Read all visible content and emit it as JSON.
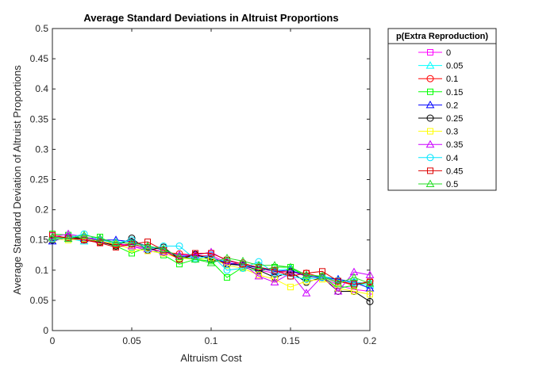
{
  "chart_data": {
    "type": "line",
    "title": "Average Standard Deviations in Altruist Proportions",
    "xlabel": "Altruism Cost",
    "ylabel": "Average Standard Deviation of Altruist Proportions",
    "xlim": [
      0,
      0.2
    ],
    "ylim": [
      0,
      0.5
    ],
    "x_ticks": [
      0,
      0.05,
      0.1,
      0.15,
      0.2
    ],
    "x_tick_labels": [
      "0",
      "0.05",
      "0.1",
      "0.15",
      "0.2"
    ],
    "y_ticks": [
      0,
      0.05,
      0.1,
      0.15,
      0.2,
      0.25,
      0.3,
      0.35,
      0.4,
      0.45,
      0.5
    ],
    "y_tick_labels": [
      "0",
      "0.05",
      "0.1",
      "0.15",
      "0.2",
      "0.25",
      "0.3",
      "0.35",
      "0.4",
      "0.45",
      "0.5"
    ],
    "grid": false,
    "legend_title": "p(Extra Reproduction)",
    "legend_position": "outside-right-top",
    "x": [
      0,
      0.01,
      0.02,
      0.03,
      0.04,
      0.05,
      0.06,
      0.07,
      0.08,
      0.09,
      0.1,
      0.11,
      0.12,
      0.13,
      0.14,
      0.15,
      0.16,
      0.17,
      0.18,
      0.19,
      0.2
    ],
    "series": [
      {
        "name": "0",
        "color": "#ff00ff",
        "marker": "square",
        "values": [
          0.157,
          0.153,
          0.15,
          0.148,
          0.142,
          0.14,
          0.132,
          0.128,
          0.12,
          0.122,
          0.125,
          0.112,
          0.108,
          0.1,
          0.095,
          0.098,
          0.09,
          0.088,
          0.075,
          0.068,
          0.065
        ]
      },
      {
        "name": "0.05",
        "color": "#00ffff",
        "marker": "triangle",
        "values": [
          0.155,
          0.152,
          0.148,
          0.15,
          0.146,
          0.145,
          0.135,
          0.13,
          0.125,
          0.12,
          0.118,
          0.115,
          0.11,
          0.105,
          0.1,
          0.102,
          0.092,
          0.09,
          0.085,
          0.078,
          0.075
        ]
      },
      {
        "name": "0.1",
        "color": "#ff0000",
        "marker": "circle",
        "values": [
          0.153,
          0.155,
          0.15,
          0.146,
          0.142,
          0.143,
          0.137,
          0.13,
          0.127,
          0.125,
          0.122,
          0.11,
          0.112,
          0.103,
          0.098,
          0.097,
          0.095,
          0.088,
          0.082,
          0.075,
          0.082
        ]
      },
      {
        "name": "0.15",
        "color": "#00ff00",
        "marker": "square",
        "values": [
          0.16,
          0.158,
          0.152,
          0.155,
          0.14,
          0.128,
          0.138,
          0.125,
          0.11,
          0.118,
          0.115,
          0.088,
          0.105,
          0.098,
          0.105,
          0.105,
          0.088,
          0.09,
          0.07,
          0.075,
          0.08
        ]
      },
      {
        "name": "0.2",
        "color": "#0000ff",
        "marker": "triangle",
        "values": [
          0.148,
          0.155,
          0.152,
          0.15,
          0.15,
          0.147,
          0.14,
          0.133,
          0.122,
          0.125,
          0.12,
          0.112,
          0.108,
          0.104,
          0.098,
          0.1,
          0.09,
          0.088,
          0.085,
          0.08,
          0.07
        ]
      },
      {
        "name": "0.25",
        "color": "#000000",
        "marker": "circle",
        "values": [
          0.15,
          0.155,
          0.152,
          0.147,
          0.14,
          0.153,
          0.133,
          0.138,
          0.118,
          0.126,
          0.118,
          0.11,
          0.108,
          0.1,
          0.088,
          0.097,
          0.08,
          0.088,
          0.065,
          0.065,
          0.048
        ]
      },
      {
        "name": "0.3",
        "color": "#ffff00",
        "marker": "square",
        "values": [
          0.152,
          0.15,
          0.152,
          0.148,
          0.143,
          0.135,
          0.132,
          0.128,
          0.12,
          0.118,
          0.12,
          0.108,
          0.103,
          0.092,
          0.085,
          0.072,
          0.082,
          0.085,
          0.07,
          0.065,
          0.06
        ]
      },
      {
        "name": "0.35",
        "color": "#cc00ff",
        "marker": "triangle",
        "values": [
          0.155,
          0.16,
          0.155,
          0.15,
          0.145,
          0.14,
          0.135,
          0.13,
          0.125,
          0.125,
          0.13,
          0.115,
          0.11,
          0.09,
          0.08,
          0.095,
          0.062,
          0.09,
          0.065,
          0.097,
          0.092
        ]
      },
      {
        "name": "0.4",
        "color": "#00e5ff",
        "marker": "circle",
        "values": [
          0.152,
          0.153,
          0.16,
          0.15,
          0.145,
          0.15,
          0.135,
          0.14,
          0.14,
          0.118,
          0.125,
          0.1,
          0.103,
          0.114,
          0.095,
          0.09,
          0.085,
          0.088,
          0.083,
          0.08,
          0.078
        ]
      },
      {
        "name": "0.45",
        "color": "#dd0000",
        "marker": "square",
        "values": [
          0.158,
          0.153,
          0.15,
          0.145,
          0.138,
          0.143,
          0.147,
          0.133,
          0.118,
          0.128,
          0.128,
          0.117,
          0.11,
          0.105,
          0.1,
          0.09,
          0.095,
          0.098,
          0.082,
          0.077,
          0.08
        ]
      },
      {
        "name": "0.5",
        "color": "#22dd22",
        "marker": "triangle",
        "values": [
          0.155,
          0.152,
          0.158,
          0.153,
          0.145,
          0.145,
          0.14,
          0.135,
          0.122,
          0.118,
          0.112,
          0.12,
          0.115,
          0.108,
          0.108,
          0.105,
          0.092,
          0.09,
          0.078,
          0.088,
          0.078
        ]
      }
    ]
  }
}
